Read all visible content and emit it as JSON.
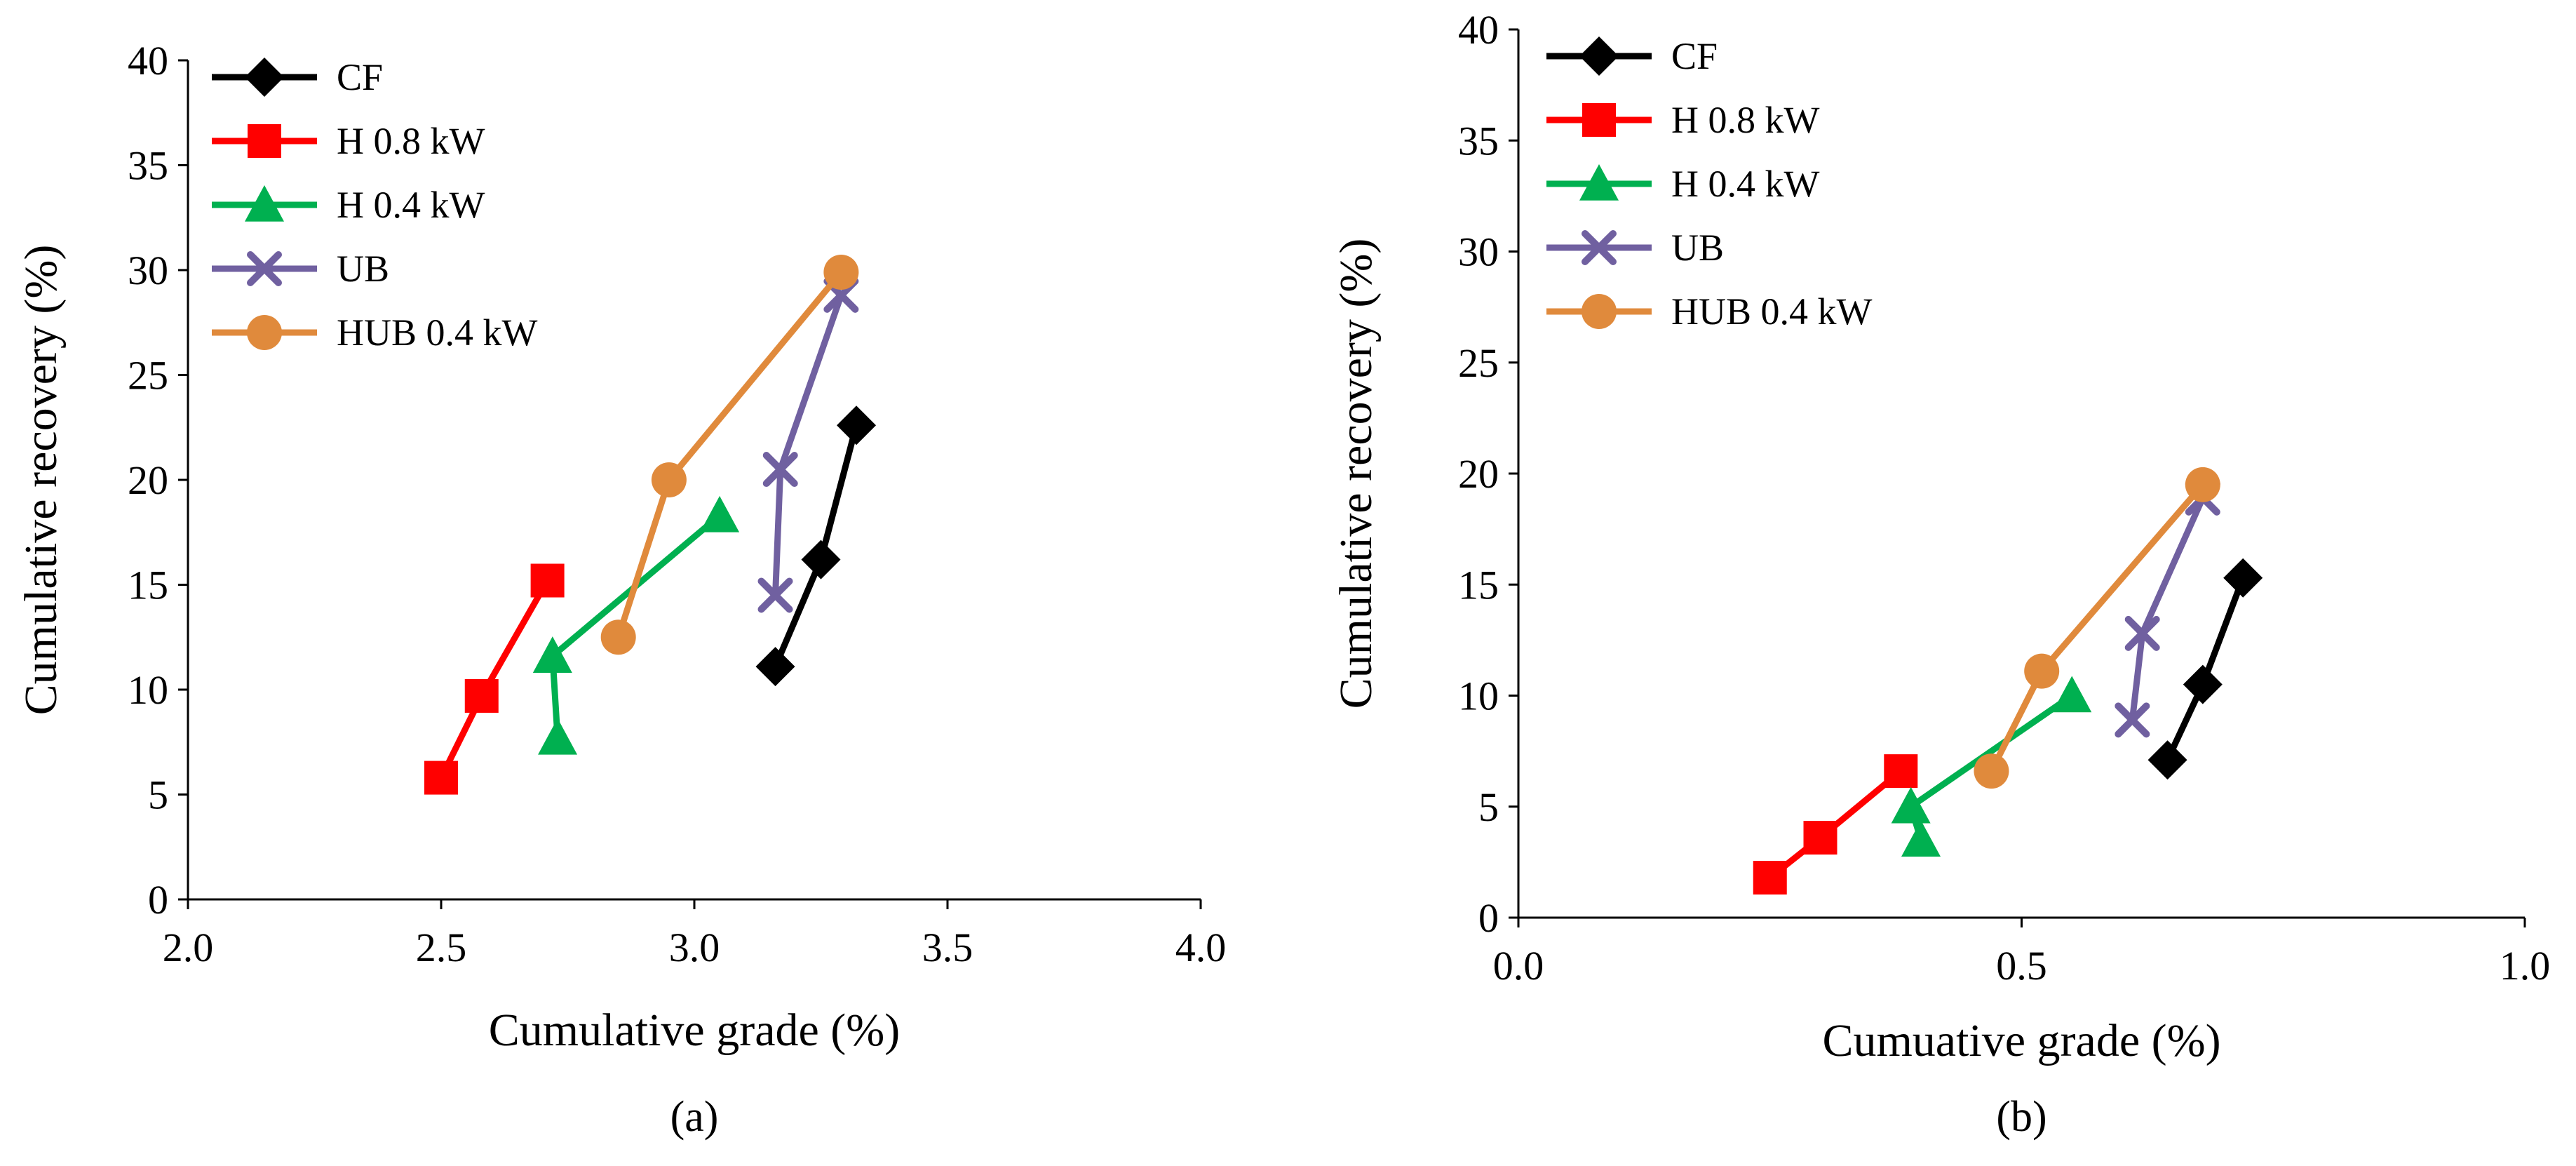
{
  "chart_data": [
    {
      "type": "line",
      "panel_label": "(a)",
      "xlabel": "Cumulative grade (%)",
      "ylabel": "Cumulative recovery (%)",
      "xlim": [
        2.0,
        4.0
      ],
      "ylim": [
        0,
        40
      ],
      "xticks": [
        "2.0",
        "2.5",
        "3.0",
        "3.5",
        "4.0"
      ],
      "yticks": [
        "0",
        "5",
        "10",
        "15",
        "20",
        "25",
        "30",
        "35",
        "40"
      ],
      "grid": false,
      "legend": "top-left",
      "series": [
        {
          "name": "CF",
          "color": "#000000",
          "marker": "diamond",
          "points": [
            [
              3.16,
              11.1
            ],
            [
              3.25,
              16.2
            ],
            [
              3.32,
              22.6
            ]
          ]
        },
        {
          "name": "H 0.8 kW",
          "color": "#ff0000",
          "marker": "square",
          "points": [
            [
              2.5,
              5.8
            ],
            [
              2.58,
              9.7
            ],
            [
              2.71,
              15.2
            ]
          ]
        },
        {
          "name": "H 0.4 kW",
          "color": "#00b050",
          "marker": "triangle",
          "points": [
            [
              2.73,
              7.7
            ],
            [
              2.72,
              11.6
            ],
            [
              3.05,
              18.3
            ]
          ]
        },
        {
          "name": "UB",
          "color": "#7060a0",
          "marker": "x",
          "points": [
            [
              3.16,
              14.5
            ],
            [
              3.17,
              20.5
            ],
            [
              3.29,
              28.8
            ]
          ]
        },
        {
          "name": "HUB 0.4 kW",
          "color": "#e08a3c",
          "marker": "circle",
          "points": [
            [
              2.85,
              12.5
            ],
            [
              2.95,
              20.0
            ],
            [
              3.29,
              29.9
            ]
          ]
        }
      ]
    },
    {
      "type": "line",
      "panel_label": "(b)",
      "xlabel": "Cumuative grade (%)",
      "ylabel": "Cumulative recovery (%)",
      "xlim": [
        0.0,
        1.0
      ],
      "ylim": [
        0,
        40
      ],
      "xticks": [
        "0.0",
        "0.5",
        "1.0"
      ],
      "yticks": [
        "0",
        "5",
        "10",
        "15",
        "20",
        "25",
        "30",
        "35",
        "40"
      ],
      "grid": false,
      "legend": "top-left",
      "series": [
        {
          "name": "CF",
          "color": "#000000",
          "marker": "diamond",
          "points": [
            [
              0.645,
              7.1
            ],
            [
              0.68,
              10.5
            ],
            [
              0.72,
              15.3
            ]
          ]
        },
        {
          "name": "H 0.8 kW",
          "color": "#ff0000",
          "marker": "square",
          "points": [
            [
              0.25,
              1.8
            ],
            [
              0.3,
              3.6
            ],
            [
              0.38,
              6.6
            ]
          ]
        },
        {
          "name": "H 0.4 kW",
          "color": "#00b050",
          "marker": "triangle",
          "points": [
            [
              0.4,
              3.5
            ],
            [
              0.39,
              5.0
            ],
            [
              0.55,
              10.0
            ]
          ]
        },
        {
          "name": "UB",
          "color": "#7060a0",
          "marker": "x",
          "points": [
            [
              0.61,
              8.9
            ],
            [
              0.62,
              12.8
            ],
            [
              0.68,
              18.9
            ]
          ]
        },
        {
          "name": "HUB 0.4 kW",
          "color": "#e08a3c",
          "marker": "circle",
          "points": [
            [
              0.47,
              6.6
            ],
            [
              0.52,
              11.1
            ],
            [
              0.68,
              19.5
            ]
          ]
        }
      ]
    }
  ]
}
